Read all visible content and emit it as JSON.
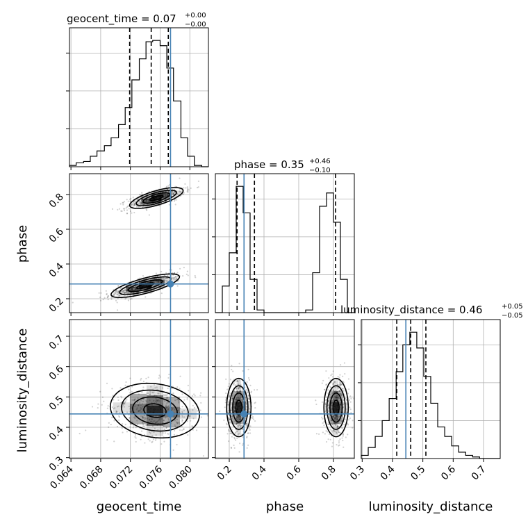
{
  "chart_data": {
    "type": "corner",
    "parameters": [
      "geocent_time",
      "phase",
      "luminosity_distance"
    ],
    "axes": {
      "geocent_time": {
        "label": "geocent_time",
        "range": [
          0.0638,
          0.0825
        ],
        "ticks": [
          0.064,
          0.068,
          0.072,
          0.076,
          0.08
        ],
        "tick_labels": [
          "0.064",
          "0.068",
          "0.072",
          "0.076",
          "0.080"
        ],
        "truth": 0.0774
      },
      "phase": {
        "label": "phase",
        "range": [
          0.12,
          0.92
        ],
        "ticks": [
          0.2,
          0.4,
          0.6,
          0.8
        ],
        "tick_labels": [
          "0.2",
          "0.4",
          "0.6",
          "0.8"
        ],
        "truth": 0.285
      },
      "luminosity_distance": {
        "label": "luminosity_distance",
        "range": [
          0.297,
          0.755
        ],
        "ticks": [
          0.3,
          0.4,
          0.5,
          0.6,
          0.7
        ],
        "tick_labels": [
          "0.3",
          "0.4",
          "0.5",
          "0.6",
          "0.7"
        ],
        "truth": 0.444
      }
    },
    "marginals": [
      {
        "param": "geocent_time",
        "title": {
          "text": "geocent_time = 0.07",
          "sup": "+0.00",
          "sub": "−0.00"
        },
        "bins": [
          0.0638,
          0.0647,
          0.0657,
          0.0666,
          0.0675,
          0.0685,
          0.0694,
          0.0704,
          0.0713,
          0.0722,
          0.0732,
          0.0741,
          0.075,
          0.076,
          0.0769,
          0.0778,
          0.0788,
          0.0797,
          0.0806,
          0.0816,
          0.0825
        ],
        "counts": [
          1,
          3,
          4,
          8,
          12,
          16,
          22,
          32,
          45,
          66,
          82,
          95,
          96,
          92,
          75,
          50,
          22,
          8,
          1,
          0
        ],
        "quantiles": [
          0.0719,
          0.0748,
          0.0771
        ]
      },
      {
        "param": "phase",
        "title": {
          "text": "phase = 0.35",
          "sup": "+0.46",
          "sub": "−0.10"
        },
        "bins": [
          0.12,
          0.16,
          0.2,
          0.24,
          0.28,
          0.32,
          0.36,
          0.4,
          0.44,
          0.48,
          0.52,
          0.56,
          0.6,
          0.64,
          0.68,
          0.72,
          0.76,
          0.8,
          0.84,
          0.88,
          0.92
        ],
        "counts": [
          0,
          20,
          45,
          95,
          75,
          25,
          2,
          0,
          0,
          0,
          0,
          0,
          0,
          2,
          30,
          80,
          90,
          68,
          25,
          0
        ],
        "quantiles": [
          0.245,
          0.345,
          0.812
        ]
      },
      {
        "param": "luminosity_distance",
        "title": {
          "text": "luminosity_distance = 0.46",
          "sup": "+0.05",
          "sub": "−0.05"
        },
        "bins": [
          0.297,
          0.32,
          0.343,
          0.366,
          0.389,
          0.412,
          0.434,
          0.457,
          0.48,
          0.503,
          0.526,
          0.549,
          0.572,
          0.595,
          0.618,
          0.641,
          0.664,
          0.687,
          0.709,
          0.732,
          0.755
        ],
        "counts": [
          2,
          7,
          14,
          24,
          38,
          55,
          72,
          80,
          70,
          52,
          35,
          20,
          14,
          8,
          4,
          2,
          1,
          0,
          0,
          0
        ],
        "quantiles": [
          0.414,
          0.46,
          0.51
        ]
      }
    ],
    "joint_densities": [
      {
        "x": "geocent_time",
        "y": "phase",
        "modes": [
          {
            "x": 0.074,
            "y": 0.275,
            "sx": 0.0023,
            "sy": 0.034,
            "rho": 0.75
          },
          {
            "x": 0.0755,
            "y": 0.78,
            "sx": 0.0018,
            "sy": 0.03,
            "rho": 0.7
          }
        ]
      },
      {
        "x": "geocent_time",
        "y": "luminosity_distance",
        "modes": [
          {
            "x": 0.0753,
            "y": 0.455,
            "sx": 0.003,
            "sy": 0.045,
            "rho": -0.15
          }
        ]
      },
      {
        "x": "phase",
        "y": "luminosity_distance",
        "modes": [
          {
            "x": 0.255,
            "y": 0.465,
            "sx": 0.035,
            "sy": 0.048,
            "rho": 0.0
          },
          {
            "x": 0.815,
            "y": 0.465,
            "sx": 0.035,
            "sy": 0.048,
            "rho": 0.0
          }
        ]
      }
    ],
    "contour_levels_sigma": [
      0.5,
      1.0,
      1.5,
      2.0
    ],
    "truth_color": "#4682b4",
    "grid": true
  }
}
